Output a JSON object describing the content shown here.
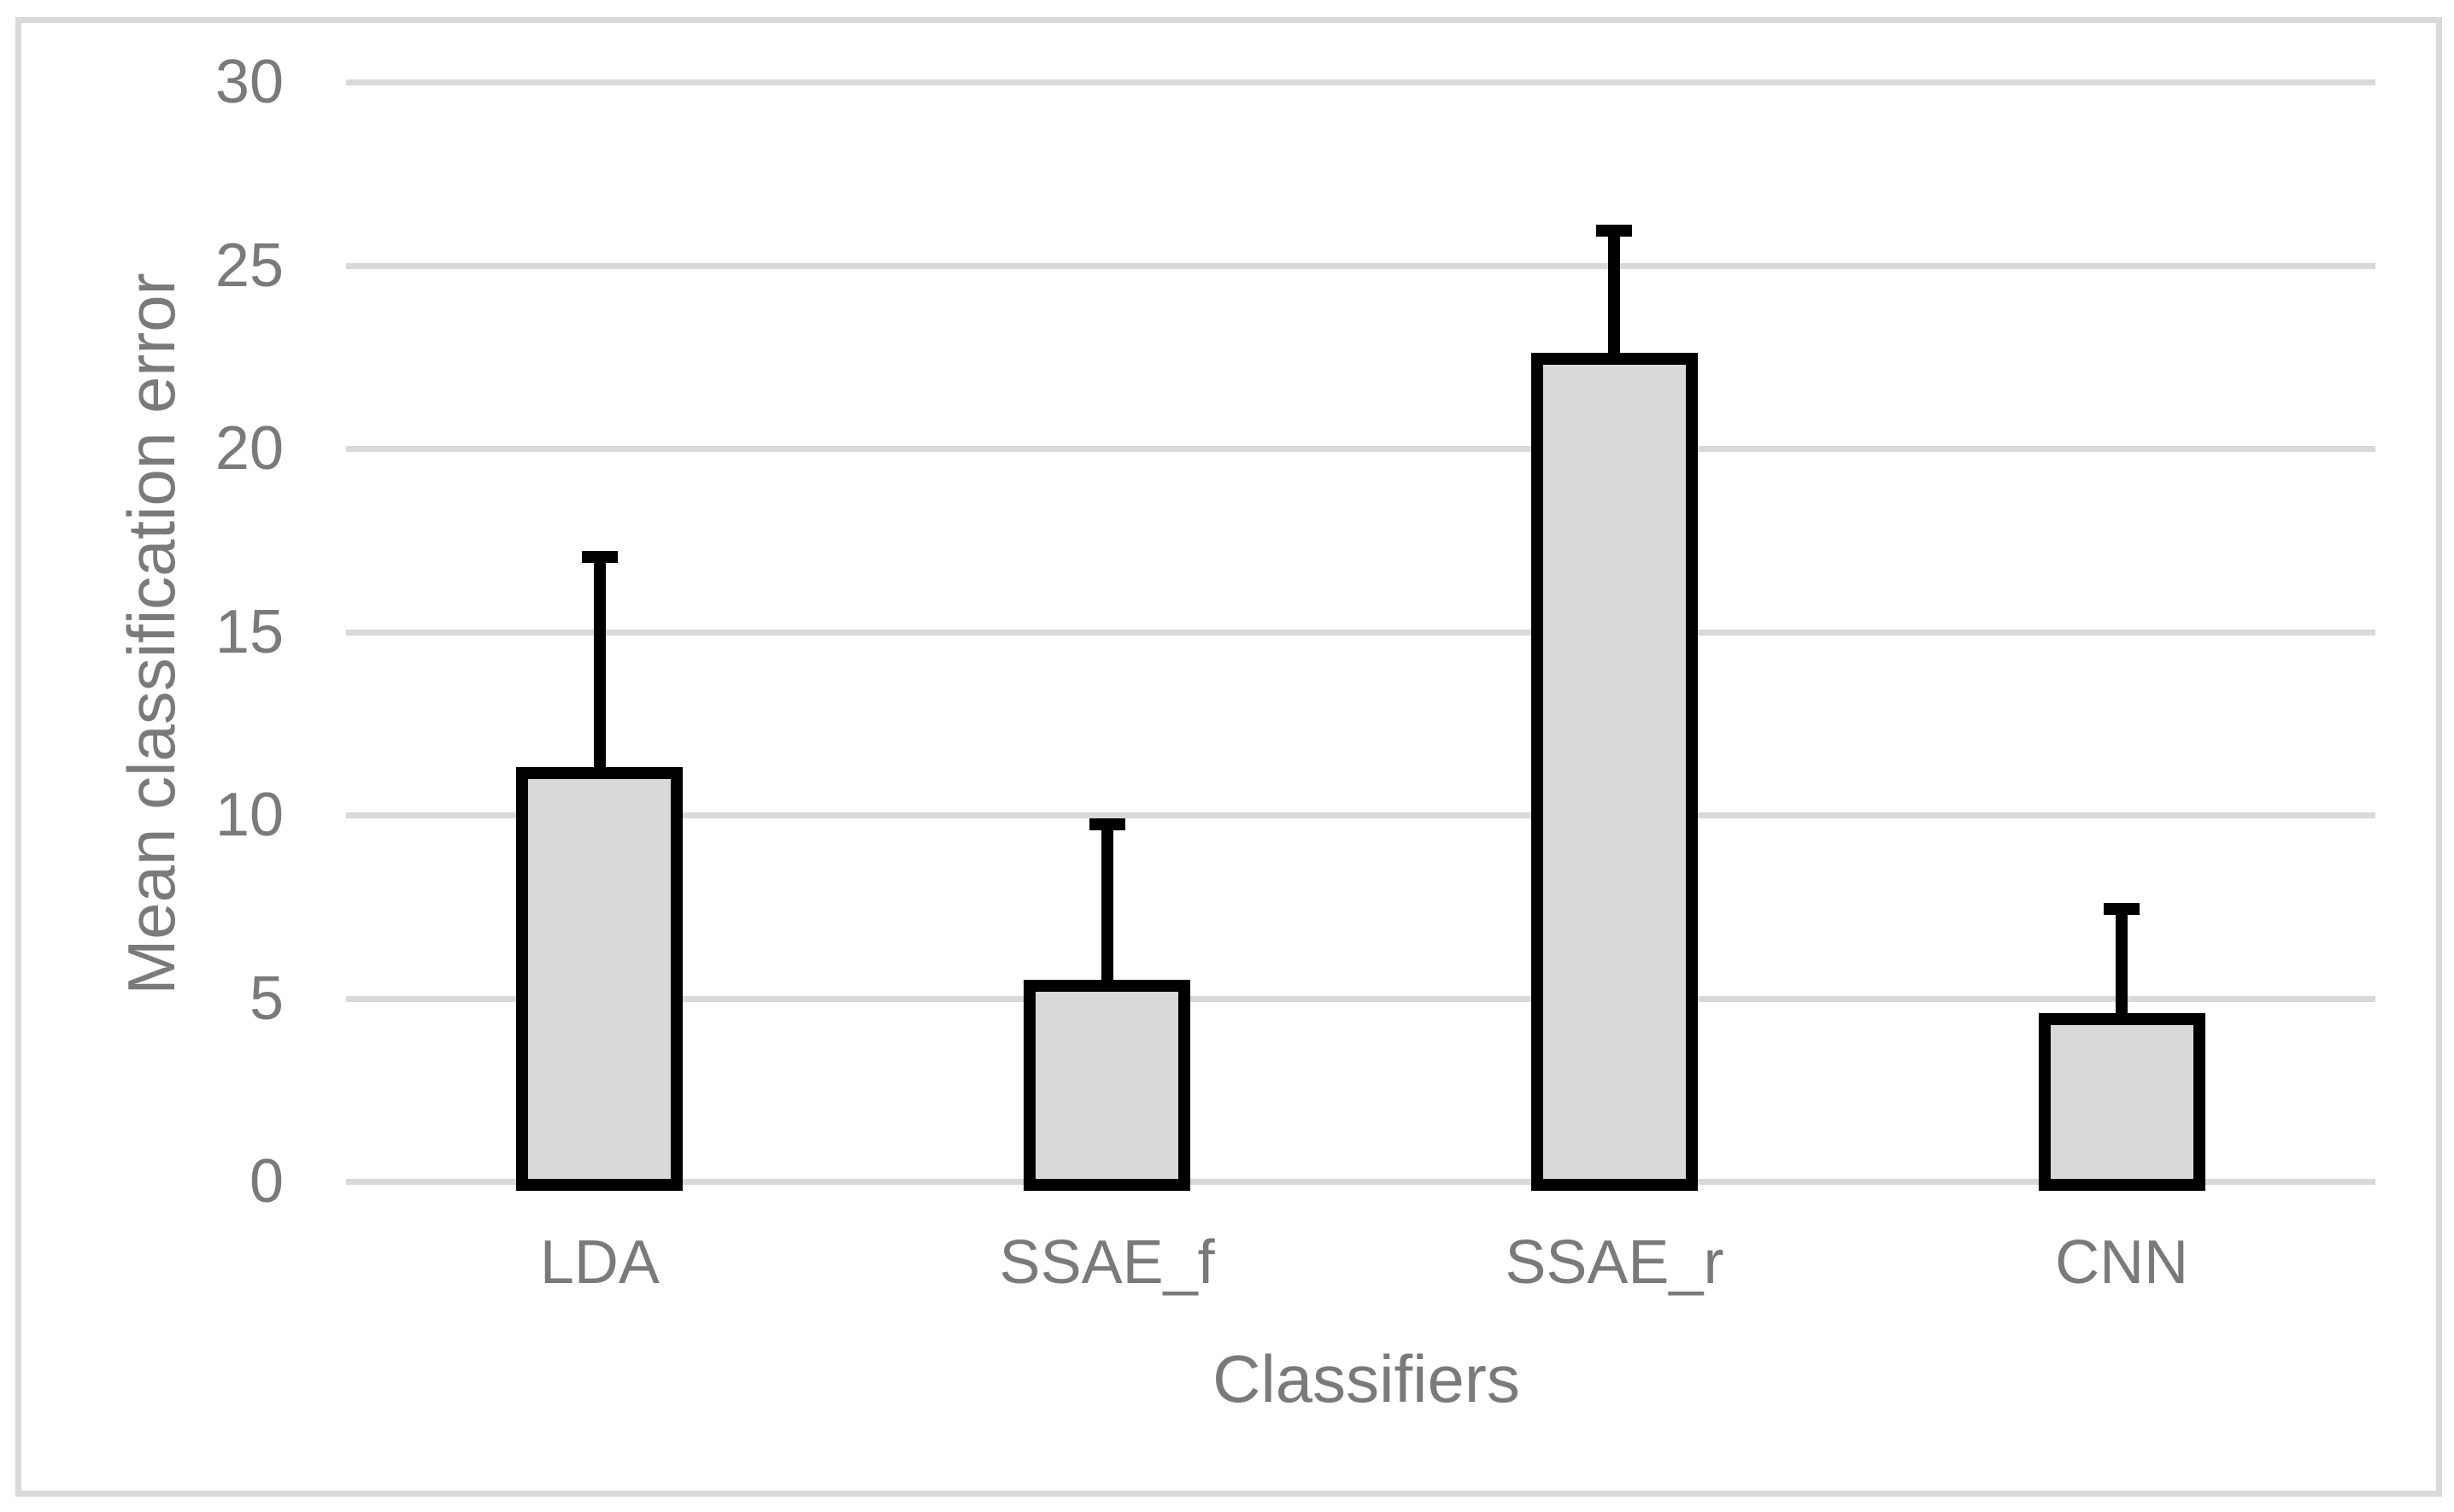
{
  "chart_data": {
    "type": "bar",
    "title": "",
    "xlabel": "Classifiers",
    "ylabel": "Mean classification error",
    "categories": [
      "LDA",
      "SSAE_f",
      "SSAE_r",
      "CNN"
    ],
    "values": [
      11.3,
      5.5,
      22.6,
      4.6
    ],
    "error_upper": [
      5.9,
      4.4,
      3.5,
      3.0
    ],
    "error_bar_top_values": [
      17.2,
      9.9,
      26.1,
      7.6
    ],
    "ylim": [
      0,
      30
    ],
    "yticks": [
      0,
      5,
      10,
      15,
      20,
      25,
      30
    ],
    "grid": "horizontal-gridlines",
    "legend_position": "none",
    "error_bars": "upper-only"
  },
  "colors": {
    "background": "#ffffff",
    "frame_border": "#d9d9d9",
    "gridline": "#d9d9d9",
    "bar_fill": "#d9d9d9",
    "bar_border": "#000000",
    "error_bar": "#000000",
    "text": "#7a7a7a"
  }
}
